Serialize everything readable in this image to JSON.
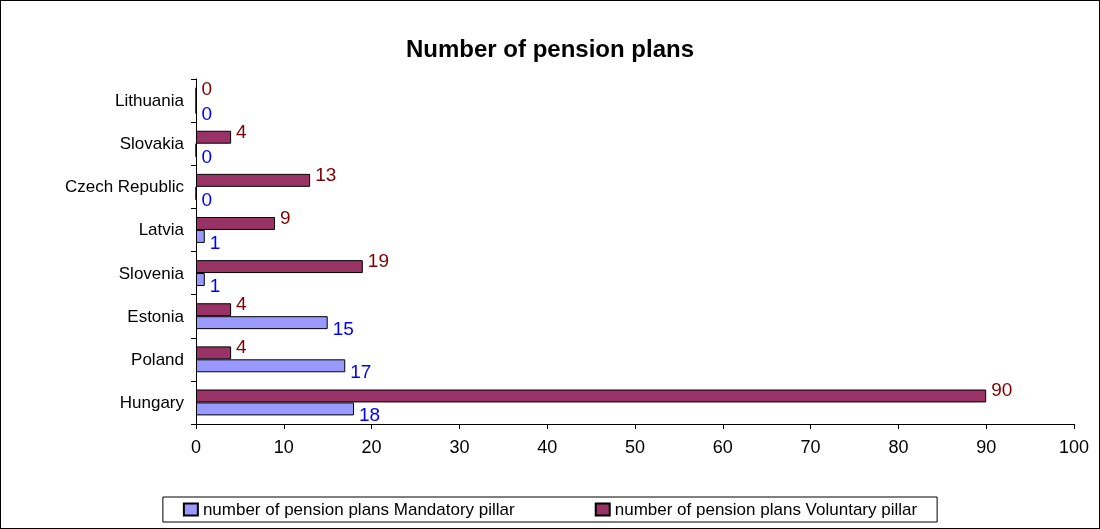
{
  "chart_data": {
    "type": "bar",
    "orientation": "horizontal",
    "title": "Number of pension plans",
    "categories": [
      "Lithuania",
      "Slovakia",
      "Czech Republic",
      "Latvia",
      "Slovenia",
      "Estonia",
      "Poland",
      "Hungary"
    ],
    "series": [
      {
        "name": "number of pension plans Mandatory pillar",
        "color": "#9999ff",
        "values": [
          0,
          0,
          0,
          1,
          1,
          15,
          17,
          18
        ]
      },
      {
        "name": "number of pension plans Voluntary pillar",
        "color": "#993366",
        "values": [
          0,
          4,
          13,
          9,
          19,
          4,
          4,
          90
        ]
      }
    ],
    "xlim": [
      0,
      100
    ],
    "xticks": [
      0,
      10,
      20,
      30,
      40,
      50,
      60,
      70,
      80,
      90,
      100
    ],
    "grid": false,
    "legend": "bottom",
    "data_labels": true
  }
}
